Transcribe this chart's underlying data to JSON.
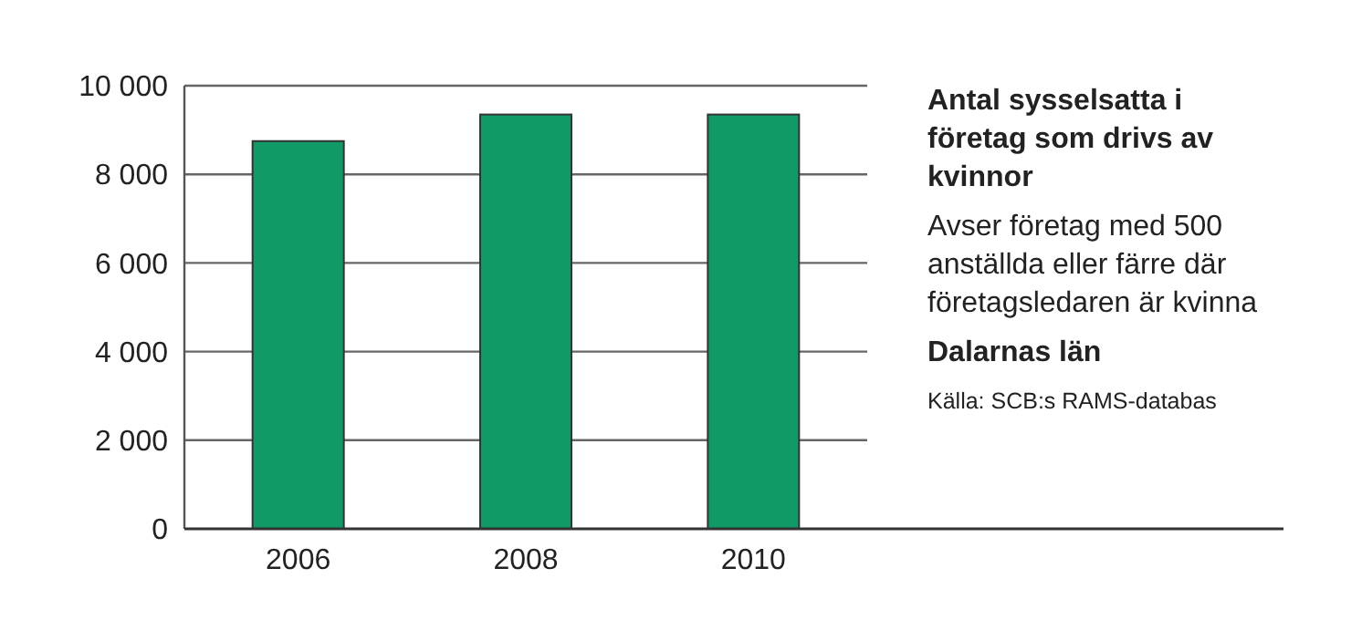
{
  "chart_data": {
    "type": "bar",
    "title": "Antal sysselsatta i företag som drivs av kvinnor",
    "subtitle": "Avser företag med 500 anställda eller färre där företagsledaren är kvinna",
    "annotations": [
      "Dalarnas län",
      "Källa: SCB:s RAMS-databas"
    ],
    "categories": [
      "2006",
      "2008",
      "2010"
    ],
    "values": [
      8750,
      9350,
      9350
    ],
    "color": "#119966",
    "ylim": [
      0,
      10000
    ],
    "yticks": [
      0,
      {
        "value": 2000,
        "label": "2 000"
      },
      {
        "value": 4000,
        "label": "4 000"
      },
      {
        "value": 6000,
        "label": "6 000"
      },
      {
        "value": 8000,
        "label": "8 000"
      },
      {
        "value": 10000,
        "label": "10 000"
      }
    ],
    "grid": "y"
  }
}
